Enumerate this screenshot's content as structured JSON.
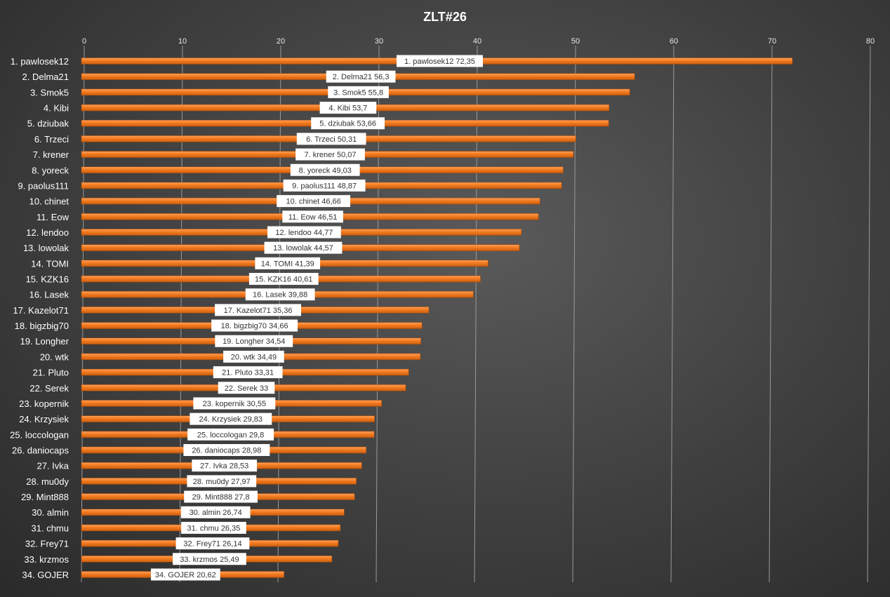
{
  "chart_data": {
    "type": "bar",
    "orientation": "horizontal",
    "title": "ZLT#26",
    "xlim": [
      0,
      80
    ],
    "x_ticks": [
      "0",
      "10",
      "20",
      "30",
      "40",
      "50",
      "60",
      "70",
      "80"
    ],
    "grid": true,
    "bar_color": "#f47b20",
    "categories": [
      "1. pawlosek12",
      "2. Delma21",
      "3. Smok5",
      "4. Kibi",
      "5. dziubak",
      "6. Trzeci",
      "7. krener",
      "8. yoreck",
      "9. paolus111",
      "10. chinet",
      "11. Eow",
      "12. lendoo",
      "13. lowolak",
      "14. TOMI",
      "15. KZK16",
      "16. Lasek",
      "17. Kazelot71",
      "18. bigzbig70",
      "19. Longher",
      "20. wtk",
      "21. Pluto",
      "22. Serek",
      "23. kopernik",
      "24. Krzysiek",
      "25. loccologan",
      "26. daniocaps",
      "27. Ivka",
      "28. mu0dy",
      "29. Mint888",
      "30. almin",
      "31. chmu",
      "32. Frey71",
      "33. krzmos",
      "34. GOJER"
    ],
    "values": [
      72.35,
      56.3,
      55.8,
      53.7,
      53.66,
      50.31,
      50.07,
      49.03,
      48.87,
      46.66,
      46.51,
      44.77,
      44.57,
      41.39,
      40.61,
      39.88,
      35.36,
      34.66,
      34.54,
      34.49,
      33.31,
      33,
      30.55,
      29.83,
      29.8,
      28.98,
      28.53,
      27.97,
      27.8,
      26.74,
      26.35,
      26.14,
      25.49,
      20.62
    ],
    "data_labels": [
      "1. pawlosek12 72,35",
      "2. Delma21 56,3",
      "3. Smok5 55,8",
      "4. Kibi 53,7",
      "5. dziubak 53,66",
      "6. Trzeci 50,31",
      "7. krener 50,07",
      "8. yoreck 49,03",
      "9. paolus111 48,87",
      "10. chinet 46,66",
      "11. Eow 46,51",
      "12. lendoo 44,77",
      "13. lowolak 44,57",
      "14. TOMI 41,39",
      "15. KZK16 40,61",
      "16. Lasek 39,88",
      "17. Kazelot71 35,36",
      "18. bigzbig70 34,66",
      "19. Longher 34,54",
      "20. wtk 34,49",
      "21. Pluto 33,31",
      "22. Serek 33",
      "23. kopernik 30,55",
      "24. Krzysiek 29,83",
      "25. loccologan 29,8",
      "26. daniocaps 28,98",
      "27. Ivka 28,53",
      "28. mu0dy 27,97",
      "29. Mint888 27,8",
      "30. almin 26,74",
      "31. chmu 26,35",
      "32. Frey71 26,14",
      "33. krzmos 25,49",
      "34. GOJER 20,62"
    ]
  }
}
